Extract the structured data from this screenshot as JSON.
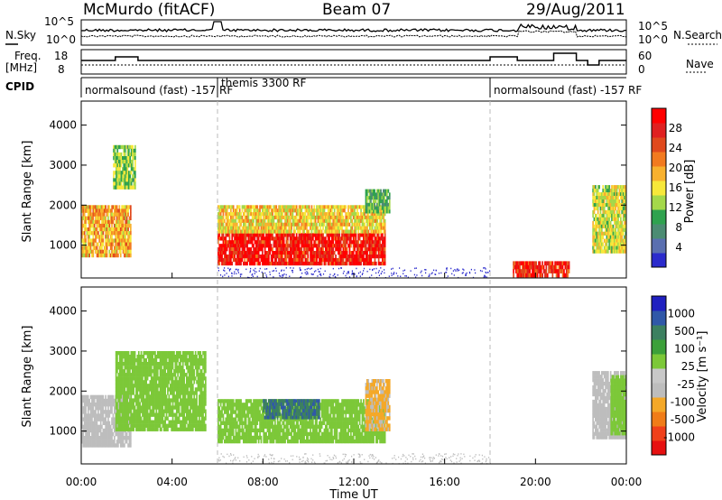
{
  "header": {
    "station": "McMurdo (fitACF)",
    "beam": "Beam 07",
    "date": "29/Aug/2011"
  },
  "top_panels": {
    "nsky_label": "N.Sky",
    "nsearch_label": "N.Search",
    "freq_label_1": "Freq.",
    "freq_label_2": "[MHz]",
    "nave_label": "Nave",
    "cpid_label": "CPID",
    "noise_left_ticks": [
      "10^5",
      "10^0"
    ],
    "noise_right_ticks": [
      "10^5",
      "10^0"
    ],
    "freq_left_ticks": [
      "18",
      "8"
    ],
    "freq_right_ticks": [
      "60",
      "0"
    ]
  },
  "cpid_segments": [
    {
      "label": "normalsound (fast) -157 RF",
      "start_h": 0,
      "end_h": 6
    },
    {
      "label": "themis 3300 RF",
      "start_h": 6,
      "end_h": 18
    },
    {
      "label": "normalsound (fast) -157 RF",
      "start_h": 18,
      "end_h": 24
    }
  ],
  "x_ticks": [
    "00:00",
    "04:00",
    "08:00",
    "12:00",
    "16:00",
    "20:00",
    "00:00"
  ],
  "x_label": "Time UT",
  "y_label": "Slant Range [km]",
  "y_ticks": [
    "1000",
    "2000",
    "3000",
    "4000"
  ],
  "colors": {
    "power": [
      "#2b2bcc",
      "#5a6fb0",
      "#4c8c73",
      "#2fa24f",
      "#a4d84a",
      "#f7e83a",
      "#f8b12e",
      "#f27a1f",
      "#e0491d",
      "#e02020",
      "#ff0000"
    ],
    "velocity": [
      "#e61010",
      "#f0401a",
      "#f07c18",
      "#f4a828",
      "#bdbdbd",
      "#c8c8c8",
      "#7cc838",
      "#3ca03a",
      "#3c8060",
      "#3058a8",
      "#2020c0"
    ]
  },
  "chart_data": [
    {
      "type": "heatmap",
      "panel": "power",
      "xlabel": "Time UT",
      "ylabel": "Slant Range [km]",
      "xlim_hours": [
        0,
        24
      ],
      "ylim": [
        180,
        4600
      ],
      "colorbar_label": "Power [dB]",
      "colorbar_ticks": [
        "28",
        "24",
        "20",
        "16",
        "12",
        "8",
        "4"
      ],
      "colorbar_range": [
        0,
        30
      ],
      "regions": [
        {
          "t0": 0.0,
          "t1": 2.2,
          "r0": 700,
          "r1": 2000,
          "value": 18
        },
        {
          "t0": 1.4,
          "t1": 2.4,
          "r0": 2400,
          "r1": 3500,
          "value": 12
        },
        {
          "t0": 6.0,
          "t1": 13.4,
          "r0": 500,
          "r1": 1300,
          "value": 28
        },
        {
          "t0": 6.0,
          "t1": 13.4,
          "r0": 1300,
          "r1": 2000,
          "value": 16
        },
        {
          "t0": 12.5,
          "t1": 13.6,
          "r0": 1800,
          "r1": 2400,
          "value": 10
        },
        {
          "t0": 22.5,
          "t1": 24.0,
          "r0": 800,
          "r1": 2500,
          "value": 14
        },
        {
          "t0": 19.0,
          "t1": 21.5,
          "r0": 200,
          "r1": 600,
          "value": 26
        }
      ]
    },
    {
      "type": "heatmap",
      "panel": "velocity",
      "xlabel": "Time UT",
      "ylabel": "Slant Range [km]",
      "xlim_hours": [
        0,
        24
      ],
      "ylim": [
        180,
        4600
      ],
      "colorbar_label": "Velocity [m s⁻¹]",
      "colorbar_ticks": [
        "1000",
        "500",
        "100",
        "25",
        "-25",
        "-100",
        "-500",
        "-1000"
      ],
      "colorbar_range": [
        -1000,
        1000
      ],
      "regions": [
        {
          "t0": 0.0,
          "t1": 2.2,
          "r0": 600,
          "r1": 1900,
          "value": -150
        },
        {
          "t0": 1.5,
          "t1": 5.5,
          "r0": 1000,
          "r1": 3000,
          "value": 150
        },
        {
          "t0": 6.0,
          "t1": 13.4,
          "r0": 700,
          "r1": 1800,
          "value": 120
        },
        {
          "t0": 8.0,
          "t1": 10.5,
          "r0": 1300,
          "r1": 1800,
          "value": 600
        },
        {
          "t0": 12.5,
          "t1": 13.6,
          "r0": 1000,
          "r1": 2300,
          "value": -300
        },
        {
          "t0": 22.5,
          "t1": 24.0,
          "r0": 800,
          "r1": 2500,
          "value": -200
        },
        {
          "t0": 23.3,
          "t1": 24.0,
          "r0": 900,
          "r1": 2400,
          "value": 200
        }
      ]
    }
  ]
}
